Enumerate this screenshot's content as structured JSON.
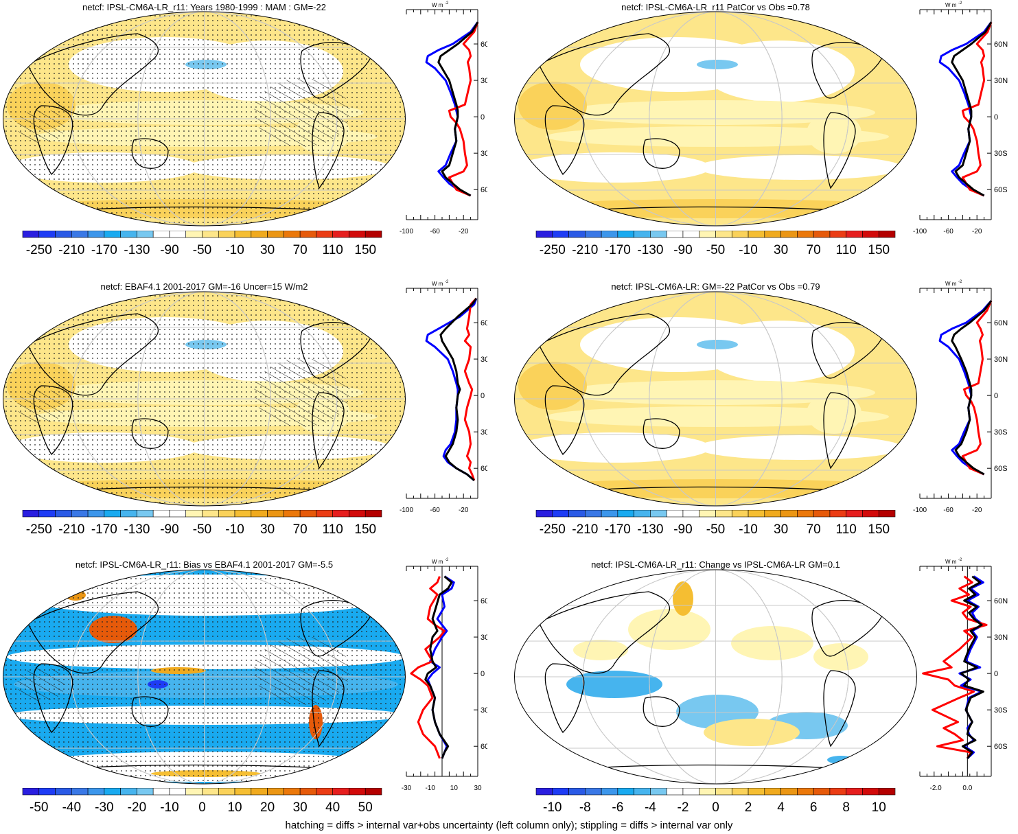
{
  "footer": "hatching = diffs > internal var+obs uncertainty (left column only); stippling = diffs > internal var only",
  "zonal_unit": "W m",
  "zonal_unit_sup": "-2",
  "lat_ticks": [
    "60N",
    "30N",
    "0",
    "30S",
    "60S"
  ],
  "colors": {
    "model": "#000000",
    "obs": "#0000ff",
    "diff": "#ff0000",
    "land_outline": "#000000",
    "grid": "#c8c8c8"
  },
  "chart_data": [
    {
      "type": "heatmap",
      "id": "p1",
      "title": "netcf: IPSL-CM6A-LR_r11: Years 1980-1999 : MAM : GM=-22",
      "colorbar_labels": [
        "-250",
        "-210",
        "-170",
        "-130",
        "-90",
        "-50",
        "-10",
        "30",
        "70",
        "110",
        "150"
      ],
      "zonal_xticks": [
        "-100",
        "-60",
        "-20"
      ],
      "zonal_xlim": [
        -100,
        0
      ],
      "zonal_lines": {
        "lat": [
          78,
          70,
          60,
          55,
          50,
          45,
          40,
          30,
          20,
          10,
          5,
          0,
          -5,
          -10,
          -20,
          -30,
          -40,
          -45,
          -50,
          -55,
          -60,
          -65
        ],
        "black": [
          0,
          -8,
          -28,
          -40,
          -52,
          -55,
          -50,
          -40,
          -35,
          -30,
          -28,
          -28,
          -30,
          -32,
          -30,
          -35,
          -40,
          -50,
          -45,
          -35,
          -25,
          -10
        ],
        "blue": [
          0,
          -10,
          -35,
          -55,
          -70,
          -72,
          -60,
          -45,
          -38,
          -32,
          -30,
          -28,
          -30,
          -32,
          -30,
          -38,
          -45,
          -55,
          -48,
          -40,
          -28,
          -10
        ],
        "red": [
          0,
          -5,
          -20,
          -12,
          -10,
          -14,
          -12,
          -10,
          -14,
          -18,
          -40,
          -38,
          -30,
          -25,
          -20,
          -18,
          -15,
          -20,
          -40,
          -35,
          -30,
          -10
        ]
      }
    },
    {
      "type": "heatmap",
      "id": "p2",
      "title": "netcf: IPSL-CM6A-LR_r11 PatCor vs Obs =0.78",
      "colorbar_labels": [
        "-250",
        "-210",
        "-170",
        "-130",
        "-90",
        "-50",
        "-10",
        "30",
        "70",
        "110",
        "150"
      ],
      "zonal_xticks": [
        "-100",
        "-60",
        "-20"
      ],
      "zonal_xlim": [
        -100,
        0
      ],
      "zonal_lines": {
        "lat": [
          78,
          70,
          60,
          55,
          50,
          45,
          40,
          30,
          20,
          10,
          5,
          0,
          -5,
          -10,
          -20,
          -30,
          -40,
          -45,
          -50,
          -55,
          -60,
          -65
        ],
        "black": [
          0,
          -8,
          -28,
          -40,
          -52,
          -55,
          -50,
          -40,
          -35,
          -30,
          -28,
          -28,
          -30,
          -32,
          -30,
          -35,
          -40,
          -50,
          -45,
          -35,
          -25,
          -10
        ],
        "blue": [
          0,
          -10,
          -35,
          -55,
          -70,
          -72,
          -60,
          -45,
          -38,
          -32,
          -30,
          -28,
          -30,
          -32,
          -30,
          -38,
          -45,
          -55,
          -48,
          -40,
          -28,
          -10
        ],
        "red": [
          0,
          -5,
          -20,
          -12,
          -10,
          -14,
          -12,
          -10,
          -14,
          -18,
          -40,
          -38,
          -30,
          -25,
          -20,
          -18,
          -15,
          -20,
          -40,
          -35,
          -30,
          -10
        ]
      }
    },
    {
      "type": "heatmap",
      "id": "p3",
      "title": "netcf: EBAF4.1 2001-2017 GM=-16 Uncer=15 W/m2",
      "colorbar_labels": [
        "-250",
        "-210",
        "-170",
        "-130",
        "-90",
        "-50",
        "-10",
        "30",
        "70",
        "110",
        "150"
      ],
      "zonal_xticks": [
        "-100",
        "-60",
        "-20"
      ],
      "zonal_xlim": [
        -100,
        0
      ],
      "zonal_lines": {
        "lat": [
          80,
          75,
          65,
          55,
          50,
          45,
          40,
          30,
          20,
          10,
          5,
          0,
          -10,
          -20,
          -30,
          -40,
          -45,
          -50,
          -55,
          -60,
          -65,
          -70
        ],
        "black": [
          -2,
          -8,
          -28,
          -45,
          -52,
          -50,
          -45,
          -35,
          -30,
          -28,
          -25,
          -28,
          -30,
          -28,
          -30,
          -35,
          -40,
          -45,
          -40,
          -30,
          -15,
          -5
        ],
        "blue": [
          -2,
          -5,
          -25,
          -55,
          -70,
          -72,
          -60,
          -42,
          -35,
          -30,
          -28,
          -28,
          -30,
          -30,
          -32,
          -38,
          -45,
          -48,
          -42,
          -30,
          -15,
          -5
        ],
        "red": [
          -2,
          -10,
          -12,
          -15,
          -12,
          -18,
          -10,
          -12,
          -18,
          -12,
          -8,
          -10,
          -15,
          -18,
          -12,
          -10,
          -12,
          -15,
          -10,
          -12,
          -8,
          -5
        ]
      }
    },
    {
      "type": "heatmap",
      "id": "p4",
      "title": "netcf: IPSL-CM6A-LR: GM=-22 PatCor vs Obs =0.79",
      "colorbar_labels": [
        "-250",
        "-210",
        "-170",
        "-130",
        "-90",
        "-50",
        "-10",
        "30",
        "70",
        "110",
        "150"
      ],
      "zonal_xticks": [
        "-100",
        "-60",
        "-20"
      ],
      "zonal_xlim": [
        -100,
        0
      ],
      "zonal_lines": {
        "lat": [
          78,
          70,
          60,
          55,
          50,
          45,
          40,
          30,
          20,
          10,
          5,
          0,
          -5,
          -10,
          -20,
          -30,
          -40,
          -45,
          -50,
          -55,
          -60,
          -65
        ],
        "black": [
          0,
          -10,
          -30,
          -42,
          -52,
          -55,
          -50,
          -42,
          -35,
          -30,
          -28,
          -28,
          -30,
          -32,
          -30,
          -35,
          -42,
          -50,
          -45,
          -35,
          -25,
          -10
        ],
        "blue": [
          0,
          -12,
          -35,
          -55,
          -70,
          -72,
          -60,
          -45,
          -38,
          -32,
          -30,
          -28,
          -30,
          -32,
          -30,
          -38,
          -45,
          -55,
          -48,
          -40,
          -28,
          -10
        ],
        "red": [
          0,
          -6,
          -20,
          -15,
          -12,
          -16,
          -14,
          -12,
          -15,
          -18,
          -38,
          -35,
          -28,
          -24,
          -20,
          -18,
          -15,
          -20,
          -40,
          -35,
          -30,
          -10
        ]
      }
    },
    {
      "type": "heatmap",
      "id": "p5",
      "title": "netcf: IPSL-CM6A-LR_r11: Bias vs EBAF4.1 2001-2017 GM=-5.5",
      "colorbar_labels": [
        "-50",
        "-40",
        "-30",
        "-20",
        "-10",
        "0",
        "10",
        "20",
        "30",
        "40",
        "50"
      ],
      "zonal_xticks": [
        "-30",
        "-10",
        "10",
        "30"
      ],
      "zonal_xlim": [
        -30,
        30
      ],
      "zonal_lines": {
        "lat": [
          80,
          75,
          70,
          65,
          55,
          45,
          40,
          35,
          30,
          20,
          10,
          5,
          0,
          -5,
          -10,
          -20,
          -30,
          -40,
          -50,
          -60,
          -65,
          -70
        ],
        "black": [
          2,
          8,
          5,
          -2,
          -5,
          -8,
          -6,
          -4,
          -8,
          -10,
          -8,
          -5,
          -12,
          -14,
          -10,
          -6,
          -8,
          -6,
          -2,
          5,
          2,
          0
        ],
        "blue": [
          2,
          10,
          8,
          0,
          2,
          -4,
          0,
          4,
          0,
          -6,
          -10,
          -2,
          -8,
          -12,
          -10,
          -6,
          -8,
          -6,
          -2,
          4,
          2,
          0
        ],
        "red": [
          -2,
          -4,
          -10,
          -4,
          -10,
          -12,
          -6,
          2,
          -2,
          -14,
          -8,
          -20,
          -26,
          -18,
          -12,
          -8,
          -16,
          -20,
          -16,
          -6,
          -4,
          -2
        ]
      }
    },
    {
      "type": "heatmap",
      "id": "p6",
      "title": "netcf: IPSL-CM6A-LR_r11: Change vs IPSL-CM6A-LR GM=0.1",
      "colorbar_labels": [
        "-10",
        "-8",
        "-6",
        "-4",
        "-2",
        "0",
        "2",
        "4",
        "6",
        "8",
        "10"
      ],
      "zonal_xticks": [
        "-2.0",
        "0.0"
      ],
      "zonal_xlim": [
        -3.0,
        1.5
      ],
      "zonal_lines": {
        "lat": [
          80,
          75,
          70,
          65,
          60,
          55,
          50,
          45,
          40,
          35,
          30,
          20,
          10,
          5,
          0,
          -5,
          -10,
          -15,
          -20,
          -30,
          -40,
          -45,
          -50,
          -55,
          -60,
          -65,
          -70
        ],
        "black": [
          0.3,
          0.8,
          0.1,
          0.5,
          -0.2,
          0.6,
          0.1,
          0.4,
          0.9,
          0.2,
          0.5,
          0.1,
          -0.2,
          0.6,
          -0.4,
          0.1,
          -0.2,
          1.0,
          0.2,
          -0.1,
          0.3,
          0.1,
          0.0,
          0.5,
          -0.3,
          0.3,
          0.0
        ],
        "blue": [
          0.4,
          1.0,
          0.2,
          0.7,
          0.0,
          0.7,
          0.3,
          0.5,
          1.0,
          0.3,
          0.6,
          0.2,
          -0.1,
          0.8,
          -0.5,
          0.2,
          -0.4,
          0.9,
          0.1,
          -0.1,
          0.3,
          0.0,
          0.1,
          0.4,
          -0.2,
          0.4,
          0.0
        ],
        "red": [
          -0.2,
          0.3,
          -0.5,
          0.1,
          -1.0,
          0.2,
          -0.3,
          0.0,
          1.2,
          -0.2,
          0.3,
          -0.5,
          -1.5,
          -1.0,
          -2.8,
          -1.2,
          -0.8,
          0.4,
          -0.5,
          -2.2,
          -0.6,
          -1.5,
          -0.8,
          -0.3,
          -1.9,
          0.2,
          0.0
        ]
      }
    }
  ]
}
